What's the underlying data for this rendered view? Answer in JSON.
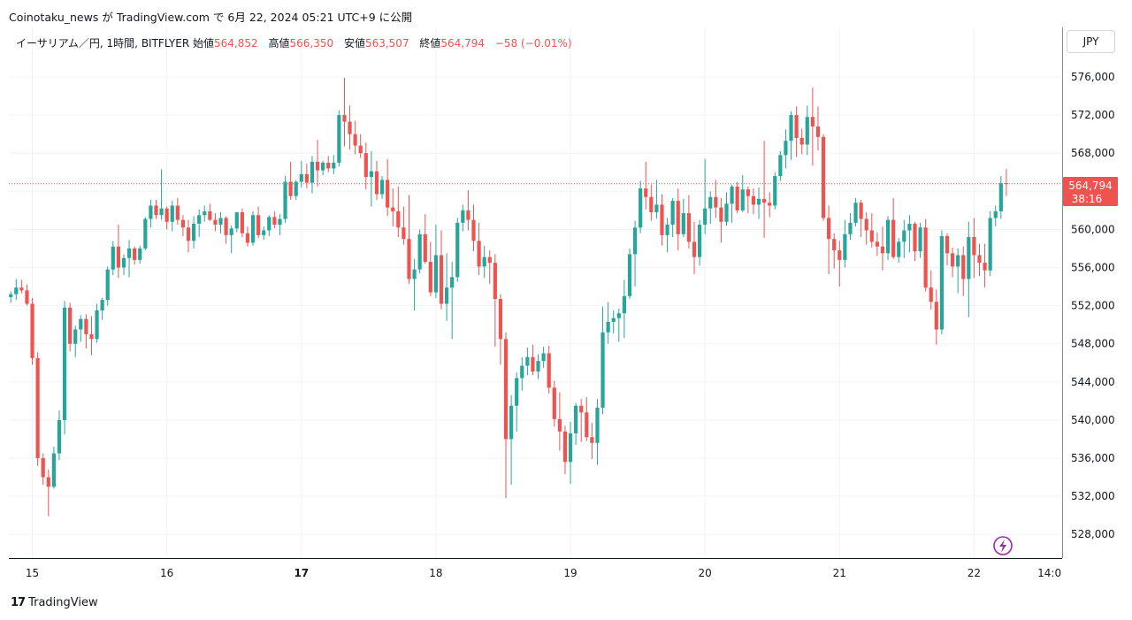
{
  "publication": {
    "user": "Coinotaku_news",
    "particle_ga": "が",
    "platform": "TradingView.com",
    "particle_de": "で",
    "date": "6月 22, 2024 05:21 UTC+9",
    "suffix": "に公開"
  },
  "legend": {
    "symbol": "イーサリアム／円, 1時間, BITFLYER",
    "open_label": "始値",
    "open": "564,852",
    "high_label": "高値",
    "high": "566,350",
    "low_label": "安値",
    "low": "563,507",
    "close_label": "終値",
    "close": "564,794",
    "change": "−58 (−0.01%)"
  },
  "currency_button": "JPY",
  "price_badge": {
    "price": "564,794",
    "countdown": "38:16"
  },
  "footer": {
    "brand": "TradingView",
    "logo_glyph": "17"
  },
  "colors": {
    "up": "#26a69a",
    "down": "#ef5350",
    "grid": "#f0f3fa",
    "axis": "#131722",
    "accent": "#9c27b0"
  },
  "icons": {
    "replay": "lightning-icon"
  },
  "chart_data": {
    "type": "candlestick",
    "interval": "1h",
    "ylim": [
      525000,
      579000
    ],
    "y_ticks": [
      "576,000",
      "572,000",
      "568,000",
      "564,000",
      "560,000",
      "556,000",
      "552,000",
      "548,000",
      "544,000",
      "540,000",
      "536,000",
      "532,000",
      "528,000"
    ],
    "y_tick_values": [
      576000,
      572000,
      568000,
      564000,
      560000,
      556000,
      552000,
      548000,
      544000,
      540000,
      536000,
      532000,
      528000
    ],
    "x_ticks": [
      {
        "label": "15",
        "bar": 4,
        "bold": false
      },
      {
        "label": "16",
        "bar": 29,
        "bold": false
      },
      {
        "label": "17",
        "bar": 54,
        "bold": true
      },
      {
        "label": "18",
        "bar": 79,
        "bold": false
      },
      {
        "label": "19",
        "bar": 104,
        "bold": false
      },
      {
        "label": "20",
        "bar": 129,
        "bold": false
      },
      {
        "label": "21",
        "bar": 154,
        "bold": false
      },
      {
        "label": "22",
        "bar": 179,
        "bold": false
      },
      {
        "label": "14:0",
        "bar": 193,
        "bold": false
      }
    ],
    "last_price": 564794,
    "candles": [
      [
        552900,
        553500,
        552300,
        553200
      ],
      [
        553200,
        554800,
        552600,
        553900
      ],
      [
        553900,
        554700,
        553300,
        553600
      ],
      [
        553600,
        554200,
        552000,
        552200
      ],
      [
        552200,
        552800,
        545800,
        546500
      ],
      [
        546500,
        547100,
        535200,
        536000
      ],
      [
        536000,
        536500,
        533200,
        534000
      ],
      [
        534000,
        534800,
        529900,
        533000
      ],
      [
        533000,
        537200,
        532800,
        536500
      ],
      [
        536500,
        541000,
        535800,
        540000
      ],
      [
        540000,
        552500,
        538500,
        551800
      ],
      [
        551800,
        552300,
        547200,
        548000
      ],
      [
        548000,
        549900,
        546600,
        549500
      ],
      [
        549500,
        551000,
        548200,
        550600
      ],
      [
        550600,
        551100,
        547500,
        549000
      ],
      [
        549000,
        550900,
        546800,
        548500
      ],
      [
        548500,
        552200,
        548100,
        551500
      ],
      [
        551500,
        552800,
        550500,
        552600
      ],
      [
        552600,
        556100,
        552000,
        555800
      ],
      [
        555800,
        558800,
        555200,
        558200
      ],
      [
        558200,
        560500,
        554900,
        556000
      ],
      [
        556000,
        557400,
        555200,
        557000
      ],
      [
        557000,
        558900,
        555000,
        558000
      ],
      [
        558000,
        558200,
        556300,
        556800
      ],
      [
        556800,
        558300,
        556400,
        558000
      ],
      [
        558000,
        561300,
        557800,
        561100
      ],
      [
        561100,
        563100,
        560200,
        562500
      ],
      [
        562500,
        563100,
        561100,
        561500
      ],
      [
        561500,
        566300,
        561000,
        562200
      ],
      [
        562200,
        562400,
        560000,
        560800
      ],
      [
        560800,
        563000,
        559800,
        562500
      ],
      [
        562500,
        563300,
        560500,
        561000
      ],
      [
        561000,
        561500,
        559300,
        560200
      ],
      [
        560200,
        561000,
        557600,
        558800
      ],
      [
        558800,
        561400,
        558000,
        560600
      ],
      [
        560600,
        562100,
        559200,
        561500
      ],
      [
        561500,
        562500,
        560800,
        561900
      ],
      [
        561900,
        562700,
        560900,
        561000
      ],
      [
        561000,
        561700,
        559800,
        560500
      ],
      [
        560500,
        561800,
        559600,
        561200
      ],
      [
        561200,
        561400,
        558500,
        559400
      ],
      [
        559400,
        560400,
        557500,
        560100
      ],
      [
        560100,
        561600,
        559700,
        561800
      ],
      [
        561800,
        562200,
        559200,
        559600
      ],
      [
        559600,
        560300,
        558200,
        558600
      ],
      [
        558600,
        561900,
        558300,
        561500
      ],
      [
        561500,
        562400,
        559100,
        559400
      ],
      [
        559400,
        560300,
        558900,
        559900
      ],
      [
        559900,
        561500,
        559300,
        561300
      ],
      [
        561300,
        561900,
        560100,
        560500
      ],
      [
        560500,
        561600,
        559400,
        561100
      ],
      [
        561100,
        565600,
        560700,
        565000
      ],
      [
        565000,
        567100,
        563100,
        563500
      ],
      [
        563500,
        565200,
        563100,
        565000
      ],
      [
        565000,
        567200,
        564400,
        565800
      ],
      [
        565800,
        566900,
        564300,
        564900
      ],
      [
        564900,
        567700,
        563800,
        567100
      ],
      [
        567100,
        569400,
        564500,
        566200
      ],
      [
        566200,
        567200,
        565700,
        567000
      ],
      [
        567000,
        567700,
        566000,
        566400
      ],
      [
        566400,
        567800,
        565800,
        567000
      ],
      [
        567000,
        572500,
        566600,
        572000
      ],
      [
        572000,
        575900,
        568700,
        571300
      ],
      [
        571300,
        573000,
        568400,
        570000
      ],
      [
        570000,
        571400,
        567900,
        568800
      ],
      [
        568800,
        570000,
        567500,
        568000
      ],
      [
        568000,
        569100,
        564200,
        565500
      ],
      [
        565500,
        568200,
        562400,
        566100
      ],
      [
        566100,
        567200,
        563100,
        563700
      ],
      [
        563700,
        565600,
        563200,
        565200
      ],
      [
        565200,
        567400,
        561400,
        562300
      ],
      [
        562300,
        564300,
        560300,
        561900
      ],
      [
        561900,
        564500,
        559200,
        560200
      ],
      [
        560200,
        562400,
        558400,
        559000
      ],
      [
        559000,
        563600,
        554300,
        554800
      ],
      [
        554800,
        556900,
        551500,
        555800
      ],
      [
        555800,
        560000,
        555400,
        559500
      ],
      [
        559500,
        561600,
        556400,
        556600
      ],
      [
        556600,
        558700,
        553000,
        553400
      ],
      [
        553400,
        560500,
        552800,
        557300
      ],
      [
        557300,
        559900,
        551600,
        552200
      ],
      [
        552200,
        557500,
        550400,
        553900
      ],
      [
        553900,
        556600,
        548500,
        555000
      ],
      [
        555000,
        561200,
        554500,
        560700
      ],
      [
        560700,
        562600,
        559800,
        562000
      ],
      [
        562000,
        564100,
        559900,
        561000
      ],
      [
        561000,
        562600,
        557700,
        558800
      ],
      [
        558800,
        560700,
        555200,
        556100
      ],
      [
        556100,
        558300,
        554900,
        557100
      ],
      [
        557100,
        557800,
        554300,
        556500
      ],
      [
        556500,
        557400,
        547700,
        552700
      ],
      [
        552700,
        553200,
        545800,
        548500
      ],
      [
        548500,
        549200,
        531800,
        538000
      ],
      [
        538000,
        542600,
        533200,
        541500
      ],
      [
        541500,
        545000,
        538800,
        544400
      ],
      [
        544400,
        546600,
        543100,
        545700
      ],
      [
        545700,
        547600,
        544700,
        546600
      ],
      [
        546600,
        547900,
        544700,
        545100
      ],
      [
        545100,
        546900,
        544300,
        546200
      ],
      [
        546200,
        547700,
        545500,
        547000
      ],
      [
        547000,
        547800,
        542800,
        543400
      ],
      [
        543400,
        544100,
        539300,
        540100
      ],
      [
        540100,
        542900,
        536800,
        538800
      ],
      [
        538800,
        539400,
        534300,
        535600
      ],
      [
        535600,
        539800,
        533300,
        538600
      ],
      [
        538600,
        541800,
        537400,
        541500
      ],
      [
        541500,
        542200,
        537700,
        540800
      ],
      [
        540800,
        542400,
        537800,
        538200
      ],
      [
        538200,
        539700,
        535900,
        537600
      ],
      [
        537600,
        542200,
        535300,
        541300
      ],
      [
        541300,
        551900,
        540600,
        549200
      ],
      [
        549200,
        552400,
        548000,
        550300
      ],
      [
        550300,
        551500,
        549100,
        550700
      ],
      [
        550700,
        551700,
        548200,
        551200
      ],
      [
        551200,
        554700,
        548600,
        553000
      ],
      [
        553000,
        558000,
        552700,
        557400
      ],
      [
        557400,
        560900,
        554000,
        560200
      ],
      [
        560200,
        565100,
        559600,
        564300
      ],
      [
        564300,
        567100,
        562100,
        563400
      ],
      [
        563400,
        564700,
        560900,
        561800
      ],
      [
        561800,
        565200,
        561100,
        562600
      ],
      [
        562600,
        563700,
        558300,
        559400
      ],
      [
        559400,
        561200,
        557600,
        560500
      ],
      [
        560500,
        563300,
        559200,
        563000
      ],
      [
        563000,
        564300,
        557800,
        559500
      ],
      [
        559500,
        563200,
        559200,
        561700
      ],
      [
        561700,
        563600,
        558000,
        558700
      ],
      [
        558700,
        560800,
        555300,
        557100
      ],
      [
        557100,
        561000,
        556200,
        560500
      ],
      [
        560500,
        567400,
        559500,
        562200
      ],
      [
        562200,
        564000,
        560600,
        563400
      ],
      [
        563400,
        565200,
        561200,
        562300
      ],
      [
        562300,
        563300,
        558600,
        560800
      ],
      [
        560800,
        563900,
        560400,
        562700
      ],
      [
        562700,
        564700,
        560700,
        564500
      ],
      [
        564500,
        565000,
        561700,
        562000
      ],
      [
        562000,
        565700,
        561800,
        564200
      ],
      [
        564200,
        564500,
        561700,
        563500
      ],
      [
        563500,
        564300,
        561600,
        562600
      ],
      [
        562600,
        564400,
        561100,
        563200
      ],
      [
        563200,
        569300,
        559100,
        562800
      ],
      [
        562800,
        563900,
        561300,
        562500
      ],
      [
        562500,
        566000,
        562100,
        565600
      ],
      [
        565600,
        568200,
        565100,
        567800
      ],
      [
        567800,
        570500,
        566400,
        569300
      ],
      [
        569300,
        572400,
        567300,
        572000
      ],
      [
        572000,
        572900,
        567600,
        569600
      ],
      [
        569600,
        570600,
        567900,
        568900
      ],
      [
        568900,
        573000,
        567800,
        571800
      ],
      [
        571800,
        574900,
        566700,
        570800
      ],
      [
        570800,
        572900,
        568300,
        569700
      ],
      [
        569700,
        570000,
        560900,
        561200
      ],
      [
        561200,
        562500,
        555300,
        559000
      ],
      [
        559000,
        559600,
        555900,
        557800
      ],
      [
        557800,
        558800,
        554000,
        556800
      ],
      [
        556800,
        561000,
        556000,
        559500
      ],
      [
        559500,
        561700,
        558900,
        560700
      ],
      [
        560700,
        563300,
        560300,
        562800
      ],
      [
        562800,
        563100,
        559200,
        561100
      ],
      [
        561100,
        561800,
        558400,
        559900
      ],
      [
        559900,
        561700,
        558100,
        558700
      ],
      [
        558700,
        559700,
        557200,
        558200
      ],
      [
        558200,
        560300,
        555700,
        557500
      ],
      [
        557500,
        561400,
        556800,
        561000
      ],
      [
        561000,
        563300,
        556900,
        557100
      ],
      [
        557100,
        559100,
        556500,
        558700
      ],
      [
        558700,
        561000,
        557000,
        559900
      ],
      [
        559900,
        561500,
        557600,
        560600
      ],
      [
        560600,
        560800,
        556700,
        557700
      ],
      [
        557700,
        560700,
        557000,
        560200
      ],
      [
        560200,
        561100,
        553500,
        553900
      ],
      [
        553900,
        555700,
        551600,
        552400
      ],
      [
        552400,
        553700,
        547900,
        549500
      ],
      [
        549500,
        559900,
        549000,
        559300
      ],
      [
        559300,
        559600,
        556200,
        557500
      ],
      [
        557500,
        558100,
        555000,
        556100
      ],
      [
        556100,
        558000,
        553300,
        557300
      ],
      [
        557300,
        558200,
        553000,
        554800
      ],
      [
        554800,
        560800,
        550800,
        559200
      ],
      [
        559200,
        561200,
        554900,
        557300
      ],
      [
        557300,
        558500,
        555100,
        556500
      ],
      [
        556500,
        558500,
        553900,
        555700
      ],
      [
        555700,
        561900,
        555100,
        561200
      ],
      [
        561200,
        562500,
        560300,
        561900
      ],
      [
        561900,
        565600,
        561100,
        564852
      ],
      [
        564852,
        566350,
        563507,
        564794
      ]
    ]
  }
}
